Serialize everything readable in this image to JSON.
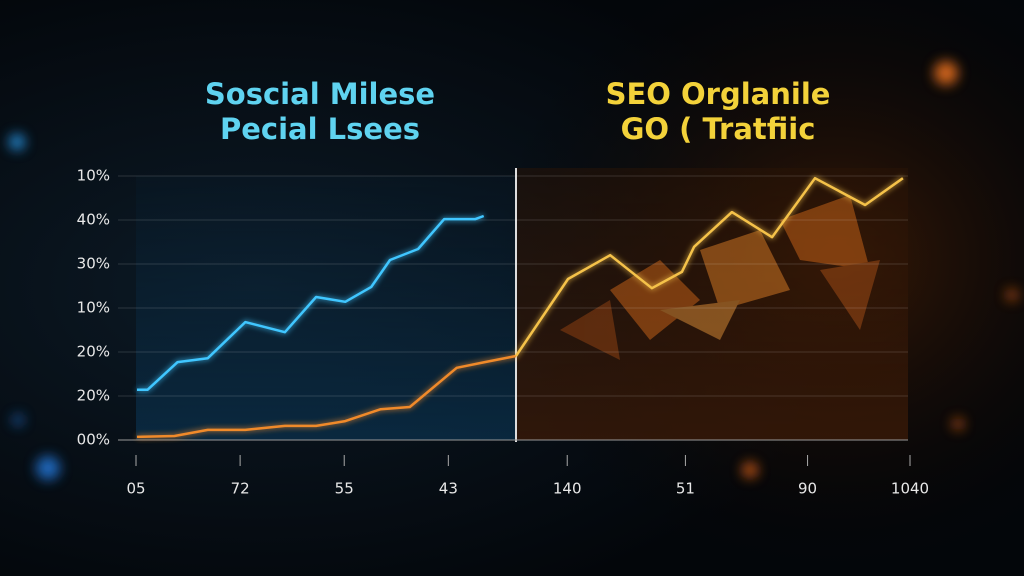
{
  "chart_data": [
    {
      "type": "line",
      "title": [
        "Soscial Milese",
        "Pecial Lsees"
      ],
      "title_color": "#5fd3f0",
      "xlim": [
        0,
        3.65
      ],
      "xticks": [
        {
          "value": 0,
          "label": "05"
        },
        {
          "value": 1,
          "label": "72"
        },
        {
          "value": 2,
          "label": "55"
        },
        {
          "value": 3,
          "label": "43"
        }
      ],
      "ylim": [
        0,
        6
      ],
      "yticks": [
        {
          "value": 0,
          "label": "00%"
        },
        {
          "value": 1,
          "label": "20%"
        },
        {
          "value": 2,
          "label": "20%"
        },
        {
          "value": 3,
          "label": "10%"
        },
        {
          "value": 4,
          "label": "30%"
        },
        {
          "value": 5,
          "label": "40%"
        },
        {
          "value": 6,
          "label": "10%"
        }
      ],
      "grid": true,
      "series": [
        {
          "color": "#3fc6ff",
          "x": [
            0.01,
            0.11,
            0.4,
            0.69,
            1.05,
            1.43,
            1.73,
            2.01,
            2.26,
            2.44,
            2.71,
            2.96,
            3.26,
            3.34
          ],
          "values": [
            1.14,
            1.14,
            1.77,
            1.86,
            2.68,
            2.45,
            3.25,
            3.14,
            3.48,
            4.09,
            4.34,
            5.02,
            5.02,
            5.09
          ]
        },
        {
          "color": "#f08a2a",
          "x": [
            0.01,
            0.37,
            0.69,
            1.05,
            1.43,
            1.73,
            2.01,
            2.35,
            2.63,
            3.08,
            3.35,
            3.65
          ],
          "values": [
            0.07,
            0.09,
            0.23,
            0.23,
            0.32,
            0.32,
            0.43,
            0.7,
            0.75,
            1.64,
            1.77,
            1.91
          ]
        }
      ]
    },
    {
      "type": "line",
      "title": [
        "SEO Orglanile",
        "GO ( Tratfiic"
      ],
      "title_color": "#f3d23a",
      "xlim": [
        0,
        10
      ],
      "xticks": [
        {
          "value": 1.3,
          "label": "140"
        },
        {
          "value": 4.3,
          "label": "51"
        },
        {
          "value": 7.4,
          "label": "90"
        },
        {
          "value": 10,
          "label": "1040"
        }
      ],
      "ylim": [
        0,
        6
      ],
      "series": [
        {
          "color": "#f5c24a",
          "x": [
            0,
            1.32,
            2.39,
            3.45,
            4.21,
            4.52,
            5.48,
            6.5,
            7.59,
            8.86,
            9.82
          ],
          "values": [
            1.91,
            3.66,
            4.2,
            3.45,
            3.82,
            4.39,
            5.18,
            4.61,
            5.95,
            5.34,
            5.95
          ]
        }
      ]
    }
  ]
}
